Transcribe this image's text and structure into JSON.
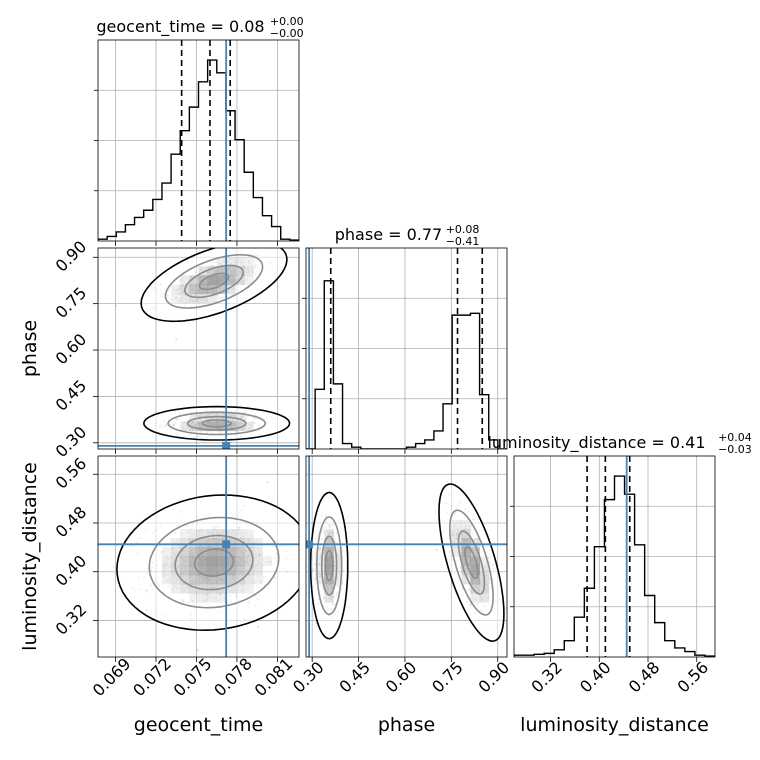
{
  "chart_data": {
    "type": "corner",
    "parameters": [
      "geocent_time",
      "phase",
      "luminosity_distance"
    ],
    "axis_labels": {
      "geocent_time": "geocent_time",
      "phase": "phase",
      "luminosity_distance": "luminosity_distance"
    },
    "ranges": {
      "geocent_time": [
        0.0677,
        0.0826
      ],
      "phase": [
        0.28,
        0.93
      ],
      "luminosity_distance": [
        0.26,
        0.59
      ]
    },
    "ticks": {
      "geocent_time": [
        {
          "value": 0.069,
          "label": "0.069"
        },
        {
          "value": 0.072,
          "label": "0.072"
        },
        {
          "value": 0.075,
          "label": "0.075"
        },
        {
          "value": 0.078,
          "label": "0.078"
        },
        {
          "value": 0.081,
          "label": "0.081"
        }
      ],
      "phase": [
        {
          "value": 0.3,
          "label": "0.30"
        },
        {
          "value": 0.45,
          "label": "0.45"
        },
        {
          "value": 0.6,
          "label": "0.60"
        },
        {
          "value": 0.75,
          "label": "0.75"
        },
        {
          "value": 0.9,
          "label": "0.90"
        }
      ],
      "luminosity_distance": [
        {
          "value": 0.32,
          "label": "0.32"
        },
        {
          "value": 0.4,
          "label": "0.40"
        },
        {
          "value": 0.48,
          "label": "0.48"
        },
        {
          "value": 0.56,
          "label": "0.56"
        }
      ]
    },
    "titles": {
      "geocent_time": {
        "main": "geocent_time = 0.08",
        "upper": "+0.00",
        "lower": "−0.00"
      },
      "phase": {
        "main": "phase = 0.77",
        "upper": "+0.08",
        "lower": "−0.41"
      },
      "luminosity_distance": {
        "main": "luminosity_distance = 0.41",
        "upper": "+0.04",
        "lower": "−0.03"
      }
    },
    "truths": {
      "geocent_time": 0.0772,
      "phase": 0.29,
      "luminosity_distance": 0.445
    },
    "quantiles": {
      "geocent_time": [
        0.0739,
        0.076,
        0.0775
      ],
      "phase": [
        0.36,
        0.77,
        0.85
      ],
      "luminosity_distance": [
        0.38,
        0.41,
        0.45
      ]
    },
    "histograms": {
      "geocent_time": {
        "range": [
          0.0677,
          0.0826
        ],
        "counts": [
          0.01,
          0.025,
          0.05,
          0.09,
          0.13,
          0.17,
          0.23,
          0.32,
          0.48,
          0.61,
          0.74,
          0.88,
          1.0,
          0.93,
          0.72,
          0.56,
          0.38,
          0.24,
          0.14,
          0.08,
          0.01,
          0.005
        ]
      },
      "phase": {
        "range": [
          0.28,
          0.93
        ],
        "counts": [
          0.0,
          0.33,
          0.93,
          0.36,
          0.03,
          0.01,
          0.0,
          0.0,
          0.0,
          0.0,
          0.0,
          0.01,
          0.03,
          0.05,
          0.1,
          0.25,
          0.74,
          0.74,
          0.75,
          0.3,
          0.05,
          0.0
        ]
      },
      "luminosity_distance": {
        "range": [
          0.26,
          0.59
        ],
        "counts": [
          0.01,
          0.01,
          0.015,
          0.02,
          0.04,
          0.09,
          0.22,
          0.38,
          0.61,
          0.87,
          1.0,
          0.9,
          0.62,
          0.34,
          0.19,
          0.09,
          0.05,
          0.03,
          0.01,
          0.005
        ]
      }
    },
    "sample_clusters": [
      {
        "x": "geocent_time",
        "y": "phase",
        "cx": 0.0763,
        "cy": 0.822,
        "sx": 0.0018,
        "sy": 0.043,
        "rho": 0.55,
        "n": 260
      },
      {
        "x": "geocent_time",
        "y": "phase",
        "cx": 0.0765,
        "cy": 0.363,
        "sx": 0.0018,
        "sy": 0.018,
        "rho": 0.0,
        "n": 230
      },
      {
        "x": "geocent_time",
        "y": "luminosity_distance",
        "cx": 0.0763,
        "cy": 0.415,
        "sx": 0.0024,
        "sy": 0.037,
        "rho": 0.1,
        "n": 460
      },
      {
        "x": "phase",
        "y": "luminosity_distance",
        "cx": 0.355,
        "cy": 0.41,
        "sx": 0.02,
        "sy": 0.04,
        "rho": 0.0,
        "n": 230
      },
      {
        "x": "phase",
        "y": "luminosity_distance",
        "cx": 0.815,
        "cy": 0.415,
        "sx": 0.035,
        "sy": 0.043,
        "rho": -0.65,
        "n": 250
      }
    ],
    "contour_levels": [
      0.6,
      1.2,
      2.0,
      3.0
    ]
  }
}
